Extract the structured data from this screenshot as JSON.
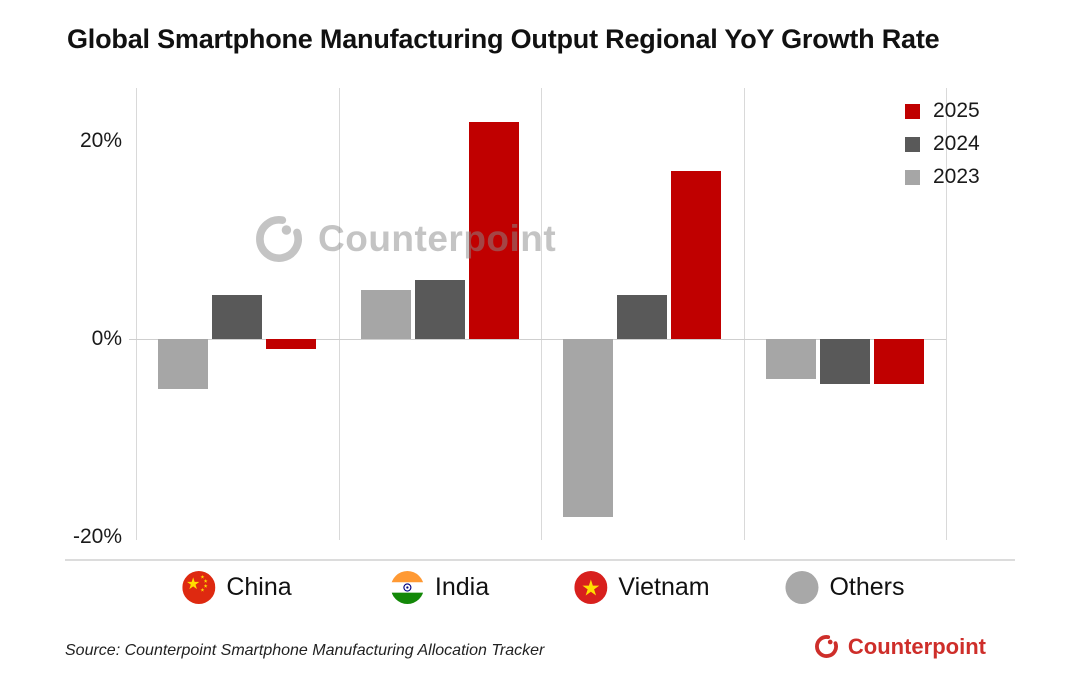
{
  "title": "Global Smartphone Manufacturing Output Regional YoY Growth Rate",
  "legend": {
    "items": [
      {
        "label": "2025",
        "color": "#C00000"
      },
      {
        "label": "2024",
        "color": "#595959"
      },
      {
        "label": "2023",
        "color": "#A6A6A6"
      }
    ]
  },
  "chart_data": {
    "type": "bar",
    "title": "Global Smartphone Manufacturing Output Regional YoY Growth Rate",
    "categories": [
      "China",
      "India",
      "Vietnam",
      "Others"
    ],
    "series": [
      {
        "name": "2023",
        "color": "#A6A6A6",
        "values": [
          -5,
          5,
          -18,
          -4
        ]
      },
      {
        "name": "2024",
        "color": "#595959",
        "values": [
          4.5,
          6,
          4.5,
          -4.5
        ]
      },
      {
        "name": "2025",
        "color": "#C00000",
        "values": [
          -1,
          22,
          17,
          -4.5
        ]
      }
    ],
    "unit": "%",
    "yticks": [
      {
        "value": 20,
        "label": "20%"
      },
      {
        "value": 0,
        "label": "0%"
      },
      {
        "value": -20,
        "label": "-20%"
      }
    ],
    "ylim": [
      -22.3,
      25.4
    ],
    "legend_position": "top-right",
    "grid": "vertical category separators and zero baseline"
  },
  "categories_row": {
    "items": [
      {
        "label": "China",
        "icon": "china-flag-icon"
      },
      {
        "label": "India",
        "icon": "india-flag-icon"
      },
      {
        "label": "Vietnam",
        "icon": "vietnam-flag-icon"
      },
      {
        "label": "Others",
        "icon": "others-dot-icon"
      }
    ]
  },
  "watermark": {
    "text": "Counterpoint",
    "icon": "counterpoint-c-icon"
  },
  "footer": {
    "source_text": "Source: Counterpoint Smartphone Manufacturing Allocation Tracker",
    "brand_text": "Counterpoint",
    "brand_icon": "counterpoint-logo-icon",
    "brand_color": "#CE2E2A"
  }
}
